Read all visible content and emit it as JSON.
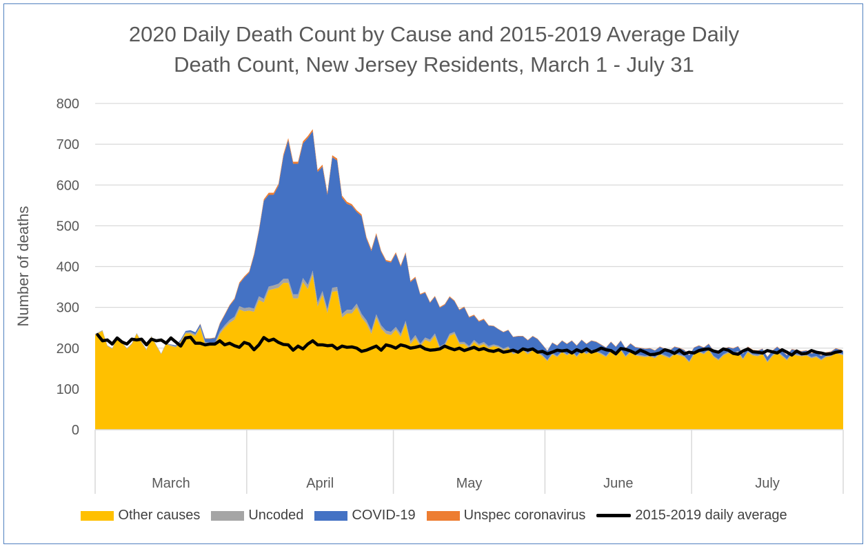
{
  "chart_data": {
    "type": "area",
    "title_lines": [
      "2020 Daily Death Count by Cause and 2015-2019 Average Daily",
      "Death Count, New Jersey Residents, March 1 - July 31"
    ],
    "ylabel": "Number of deaths",
    "xlabel": "",
    "ylim": [
      0,
      800
    ],
    "yticks": [
      "0",
      "100",
      "200",
      "300",
      "400",
      "500",
      "600",
      "700",
      "800"
    ],
    "months": [
      {
        "label": "March",
        "days": 31
      },
      {
        "label": "April",
        "days": 30
      },
      {
        "label": "May",
        "days": 31
      },
      {
        "label": "June",
        "days": 30
      },
      {
        "label": "July",
        "days": 31
      }
    ],
    "series": [
      {
        "name": "Other causes",
        "color": "#ffc000",
        "kind": "stacked-area",
        "values": [
          233,
          242,
          205,
          198,
          225,
          213,
          198,
          210,
          235,
          214,
          195,
          228,
          206,
          185,
          210,
          205,
          202,
          215,
          236,
          236,
          230,
          250,
          210,
          208,
          208,
          235,
          250,
          262,
          270,
          295,
          290,
          292,
          289,
          318,
          312,
          342,
          345,
          348,
          360,
          360,
          322,
          322,
          362,
          345,
          380,
          302,
          330,
          286,
          338,
          340,
          275,
          285,
          285,
          300,
          275,
          260,
          235,
          275,
          248,
          235,
          232,
          245,
          228,
          260,
          210,
          225,
          205,
          220,
          215,
          230,
          198,
          205,
          230,
          235,
          210,
          210,
          200,
          215,
          205,
          210,
          200,
          205,
          202,
          195,
          200,
          185,
          190,
          195,
          185,
          195,
          188,
          180,
          168,
          185,
          178,
          190,
          182,
          190,
          178,
          192,
          185,
          193,
          190,
          185,
          178,
          192,
          180,
          195,
          178,
          190,
          182,
          180,
          178,
          180,
          175,
          185,
          180,
          175,
          185,
          182,
          178,
          165,
          185,
          190,
          185,
          195,
          178,
          170,
          182,
          188,
          185,
          190,
          172,
          190,
          182,
          180,
          185,
          165,
          180,
          190,
          180,
          170,
          185,
          182,
          180,
          182,
          175,
          178,
          170,
          178,
          180,
          188,
          182
        ]
      },
      {
        "name": "Uncoded",
        "color": "#a5a5a5",
        "kind": "stacked-area",
        "values": [
          2,
          2,
          2,
          2,
          2,
          2,
          2,
          2,
          2,
          2,
          2,
          2,
          2,
          2,
          2,
          3,
          3,
          3,
          3,
          4,
          4,
          4,
          5,
          5,
          5,
          6,
          6,
          7,
          7,
          8,
          8,
          8,
          8,
          9,
          9,
          9,
          9,
          10,
          10,
          10,
          10,
          10,
          10,
          10,
          10,
          10,
          10,
          10,
          10,
          10,
          9,
          9,
          9,
          9,
          9,
          8,
          8,
          8,
          8,
          8,
          8,
          7,
          7,
          7,
          7,
          7,
          6,
          6,
          6,
          6,
          6,
          6,
          5,
          5,
          5,
          5,
          5,
          5,
          5,
          5,
          5,
          4,
          4,
          4,
          4,
          4,
          4,
          4,
          4,
          4,
          4,
          3,
          3,
          3,
          3,
          3,
          3,
          3,
          3,
          3,
          3,
          3,
          3,
          3,
          3,
          3,
          3,
          3,
          3,
          3,
          3,
          3,
          3,
          3,
          3,
          3,
          3,
          3,
          3,
          3,
          3,
          3,
          3,
          3,
          3,
          3,
          3,
          3,
          3,
          3,
          3,
          3,
          3,
          3,
          3,
          3,
          3,
          3,
          3,
          3,
          3,
          3,
          3,
          3,
          3,
          3,
          3,
          3,
          3,
          3,
          3,
          3,
          3
        ]
      },
      {
        "name": "COVID-19",
        "color": "#4472c4",
        "kind": "stacked-area",
        "values": [
          0,
          0,
          0,
          0,
          0,
          0,
          0,
          0,
          0,
          0,
          0,
          0,
          0,
          0,
          0,
          1,
          2,
          3,
          3,
          4,
          5,
          5,
          8,
          10,
          12,
          18,
          25,
          35,
          42,
          55,
          75,
          85,
          130,
          160,
          240,
          225,
          222,
          240,
          300,
          340,
          320,
          320,
          330,
          360,
          342,
          320,
          305,
          280,
          320,
          310,
          285,
          260,
          255,
          225,
          240,
          200,
          195,
          195,
          180,
          170,
          170,
          180,
          165,
          165,
          145,
          140,
          120,
          110,
          90,
          90,
          95,
          95,
          90,
          75,
          78,
          85,
          70,
          60,
          55,
          55,
          50,
          45,
          40,
          40,
          40,
          38,
          35,
          30,
          30,
          30,
          30,
          25,
          22,
          25,
          25,
          25,
          25,
          25,
          25,
          25,
          22,
          22,
          22,
          20,
          20,
          20,
          20,
          20,
          18,
          18,
          17,
          17,
          17,
          16,
          16,
          15,
          15,
          15,
          15,
          15,
          14,
          14,
          13,
          13,
          13,
          12,
          12,
          12,
          12,
          11,
          11,
          11,
          11,
          10,
          10,
          10,
          10,
          10,
          10,
          10,
          10,
          9,
          9,
          9,
          9,
          9,
          9,
          8,
          8,
          8,
          8,
          8,
          8
        ]
      },
      {
        "name": "Unspec coronavirus",
        "color": "#ed7d31",
        "kind": "stacked-area",
        "values": [
          0,
          0,
          0,
          0,
          0,
          0,
          0,
          0,
          0,
          0,
          0,
          0,
          0,
          0,
          0,
          0,
          0,
          0,
          0,
          0,
          0,
          1,
          1,
          1,
          1,
          2,
          2,
          2,
          3,
          3,
          3,
          3,
          4,
          4,
          4,
          5,
          5,
          5,
          5,
          5,
          5,
          5,
          5,
          5,
          5,
          5,
          5,
          5,
          5,
          5,
          5,
          5,
          4,
          4,
          4,
          4,
          4,
          4,
          3,
          3,
          3,
          3,
          3,
          3,
          3,
          3,
          2,
          2,
          2,
          2,
          2,
          2,
          2,
          2,
          2,
          2,
          2,
          2,
          2,
          2,
          1,
          1,
          1,
          1,
          1,
          1,
          1,
          1,
          1,
          1,
          1,
          1,
          1,
          1,
          1,
          1,
          1,
          1,
          1,
          1,
          1,
          1,
          1,
          1,
          1,
          1,
          1,
          1,
          1,
          1,
          1,
          1,
          1,
          1,
          1,
          1,
          1,
          1,
          1,
          1,
          1,
          1,
          1,
          1,
          1,
          1,
          1,
          1,
          1,
          1,
          1,
          1,
          1,
          1,
          1,
          1,
          1,
          1,
          1,
          1,
          1,
          1,
          1,
          1,
          1,
          1,
          1,
          1,
          1,
          1,
          1,
          1,
          1
        ]
      },
      {
        "name": "2015-2019 daily average",
        "color": "#000000",
        "kind": "line",
        "values": [
          233,
          218,
          220,
          210,
          225,
          215,
          210,
          222,
          220,
          222,
          208,
          222,
          218,
          220,
          212,
          225,
          215,
          205,
          225,
          227,
          212,
          212,
          208,
          210,
          210,
          218,
          208,
          212,
          206,
          202,
          214,
          210,
          196,
          208,
          226,
          218,
          222,
          214,
          209,
          208,
          195,
          205,
          198,
          210,
          218,
          208,
          208,
          206,
          207,
          198,
          205,
          202,
          203,
          200,
          192,
          195,
          200,
          205,
          195,
          208,
          205,
          200,
          208,
          205,
          200,
          202,
          205,
          198,
          195,
          196,
          198,
          205,
          200,
          196,
          200,
          194,
          198,
          202,
          196,
          199,
          194,
          192,
          196,
          190,
          192,
          195,
          190,
          198,
          195,
          198,
          190,
          192,
          186,
          190,
          195,
          193,
          195,
          188,
          196,
          191,
          198,
          190,
          194,
          200,
          196,
          194,
          186,
          199,
          197,
          193,
          187,
          195,
          190,
          184,
          185,
          188,
          196,
          193,
          187,
          195,
          186,
          190,
          188,
          194,
          197,
          198,
          193,
          190,
          198,
          195,
          187,
          185,
          193,
          198,
          191,
          190,
          188,
          194,
          191,
          188,
          196,
          190,
          183,
          193,
          186,
          187,
          194,
          190,
          188,
          185,
          186,
          190,
          192
        ]
      }
    ]
  }
}
